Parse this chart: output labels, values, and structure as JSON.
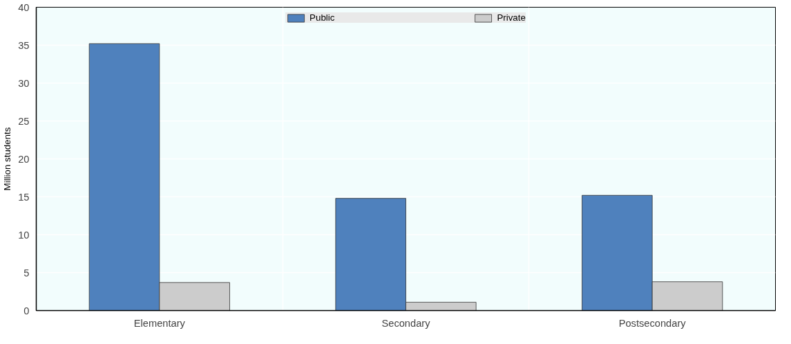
{
  "chart_data": {
    "type": "bar",
    "ylabel": "Million students",
    "categories": [
      "Elementary",
      "Secondary",
      "Postsecondary"
    ],
    "series": [
      {
        "name": "Public",
        "color": "#4f81bd",
        "values": [
          35.2,
          14.8,
          15.2
        ]
      },
      {
        "name": "Private",
        "color": "#cccccc",
        "values": [
          3.7,
          1.1,
          3.8
        ]
      }
    ],
    "ylim": [
      0,
      40
    ],
    "yticks": [
      0,
      5,
      10,
      15,
      20,
      25,
      30,
      35,
      40
    ],
    "grid": true,
    "legend": "top"
  }
}
